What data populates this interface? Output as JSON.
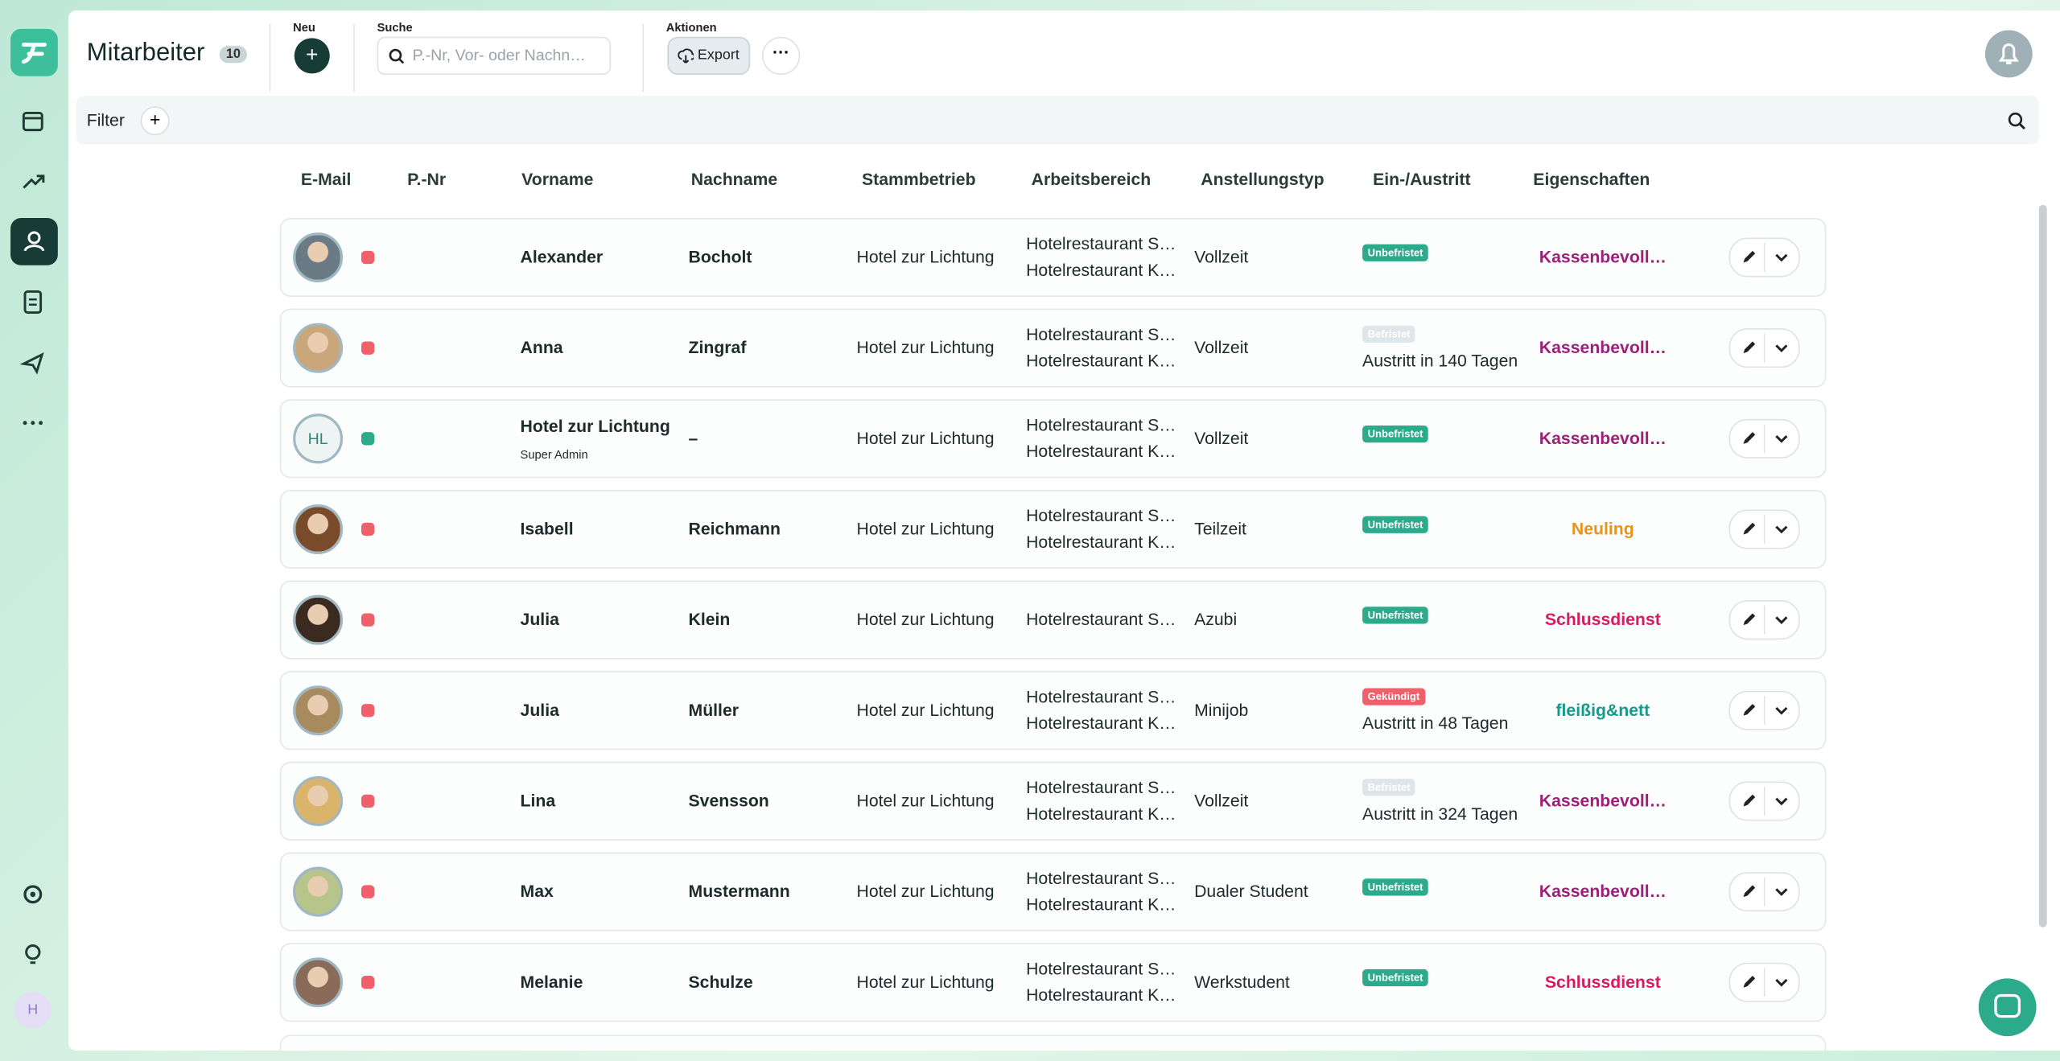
{
  "header": {
    "title": "Mitarbeiter",
    "count": "10",
    "new_label": "Neu",
    "search_label": "Suche",
    "search_placeholder": "P.-Nr, Vor- oder Nachn…",
    "actions_label": "Aktionen",
    "export": "Export",
    "user_initial": "H"
  },
  "filter": {
    "label": "Filter"
  },
  "table": {
    "columns": [
      "E-Mail",
      "P.-Nr",
      "Vorname",
      "Nachname",
      "Stammbetrieb",
      "Arbeitsbereich",
      "Anstellungstyp",
      "Ein-/Austritt",
      "Eigenschaften"
    ],
    "rows": [
      {
        "first": "Alexander",
        "last": "Bocholt",
        "site": "Hotel zur Lichtung",
        "areas": [
          "Hotelrestaurant S…",
          "Hotelrestaurant K…"
        ],
        "type": "Vollzeit",
        "status": "Unbefristet",
        "status_color": "#2bab8b",
        "tag": "Kassenbevoll…",
        "tag_color": "#9c1f7a",
        "dot_color": "#f0606a"
      },
      {
        "first": "Anna",
        "last": "Zingraf",
        "site": "Hotel zur Lichtung",
        "areas": [
          "Hotelrestaurant S…",
          "Hotelrestaurant K…"
        ],
        "type": "Vollzeit",
        "status": "Befristet",
        "status_color": "#dfe6ea",
        "exit": "Austritt in 140 Tagen",
        "tag": "Kassenbevoll…",
        "tag_color": "#9c1f7a",
        "dot_color": "#f0606a"
      },
      {
        "first": "Hotel zur Lichtung",
        "sub": "Super Admin",
        "initials": "HL",
        "last": "–",
        "site": "Hotel zur Lichtung",
        "areas": [
          "Hotelrestaurant S…",
          "Hotelrestaurant K…"
        ],
        "type": "Vollzeit",
        "status": "Unbefristet",
        "status_color": "#2bab8b",
        "tag": "Kassenbevoll…",
        "tag_color": "#9c1f7a",
        "dot_color": "#2bab8b"
      },
      {
        "first": "Isabell",
        "last": "Reichmann",
        "site": "Hotel zur Lichtung",
        "areas": [
          "Hotelrestaurant S…",
          "Hotelrestaurant K…"
        ],
        "type": "Teilzeit",
        "status": "Unbefristet",
        "status_color": "#2bab8b",
        "tag": "Neuling",
        "tag_color": "#e8941a",
        "dot_color": "#f0606a"
      },
      {
        "first": "Julia",
        "last": "Klein",
        "site": "Hotel zur Lichtung",
        "areas": [
          "Hotelrestaurant S…"
        ],
        "type": "Azubi",
        "status": "Unbefristet",
        "status_color": "#2bab8b",
        "tag": "Schlussdienst",
        "tag_color": "#d81b60",
        "dot_color": "#f0606a"
      },
      {
        "first": "Julia",
        "last": "Müller",
        "site": "Hotel zur Lichtung",
        "areas": [
          "Hotelrestaurant S…",
          "Hotelrestaurant K…"
        ],
        "type": "Minijob",
        "status": "Gekündigt",
        "status_color": "#f0606a",
        "exit": "Austritt in 48 Tagen",
        "tag": "fleißig&nett",
        "tag_color": "#159a8c",
        "dot_color": "#f0606a"
      },
      {
        "first": "Lina",
        "last": "Svensson",
        "site": "Hotel zur Lichtung",
        "areas": [
          "Hotelrestaurant S…",
          "Hotelrestaurant K…"
        ],
        "type": "Vollzeit",
        "status": "Befristet",
        "status_color": "#dfe6ea",
        "exit": "Austritt in 324 Tagen",
        "tag": "Kassenbevoll…",
        "tag_color": "#9c1f7a",
        "dot_color": "#f0606a"
      },
      {
        "first": "Max",
        "last": "Mustermann",
        "site": "Hotel zur Lichtung",
        "areas": [
          "Hotelrestaurant S…",
          "Hotelrestaurant K…"
        ],
        "type": "Dualer Student",
        "status": "Unbefristet",
        "status_color": "#2bab8b",
        "tag": "Kassenbevoll…",
        "tag_color": "#9c1f7a",
        "dot_color": "#f0606a"
      },
      {
        "first": "Melanie",
        "last": "Schulze",
        "site": "Hotel zur Lichtung",
        "areas": [
          "Hotelrestaurant S…",
          "Hotelrestaurant K…"
        ],
        "type": "Werkstudent",
        "status": "Unbefristet",
        "status_color": "#2bab8b",
        "tag": "Schlussdienst",
        "tag_color": "#d81b60",
        "dot_color": "#f0606a"
      }
    ]
  }
}
